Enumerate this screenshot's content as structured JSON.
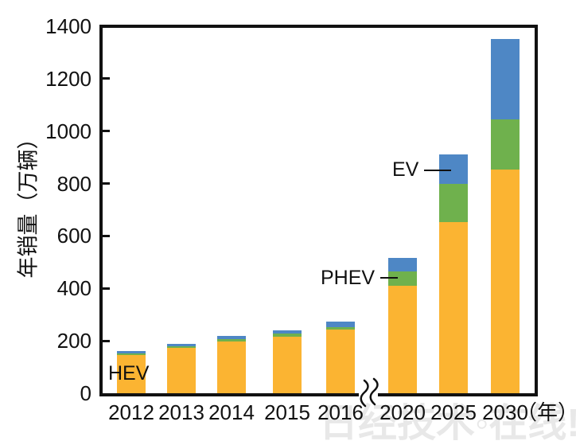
{
  "watermark": "日经技术◦在线!",
  "chart_data": {
    "type": "bar",
    "stacked": true,
    "title": "",
    "ylabel": "年销量（万辆）",
    "xlabel": "",
    "xunit": "（年）",
    "ylim": [
      0,
      1400
    ],
    "yticks": [
      0,
      200,
      400,
      600,
      800,
      1000,
      1200,
      1400
    ],
    "grid": false,
    "legend_position": "inline-annotations",
    "axis_break_between": [
      "2016",
      "2020"
    ],
    "categories": [
      "2012",
      "2013",
      "2014",
      "2015",
      "2016",
      "2020",
      "2025",
      "2030"
    ],
    "series": [
      {
        "name": "HEV",
        "color": "#FBB432",
        "values": [
          145,
          172,
          197,
          215,
          243,
          410,
          653,
          854
        ]
      },
      {
        "name": "PHEV",
        "color": "#6FB14D",
        "values": [
          7,
          7,
          10,
          13,
          10,
          55,
          146,
          191
        ]
      },
      {
        "name": "EV",
        "color": "#4E87C5",
        "values": [
          9,
          10,
          12,
          12,
          19,
          50,
          113,
          307
        ]
      }
    ],
    "annotations": [
      {
        "label": "HEV",
        "target": "2012 HEV segment"
      },
      {
        "label": "PHEV",
        "target": "2020 PHEV segment"
      },
      {
        "label": "EV",
        "target": "2025 EV segment"
      }
    ]
  }
}
